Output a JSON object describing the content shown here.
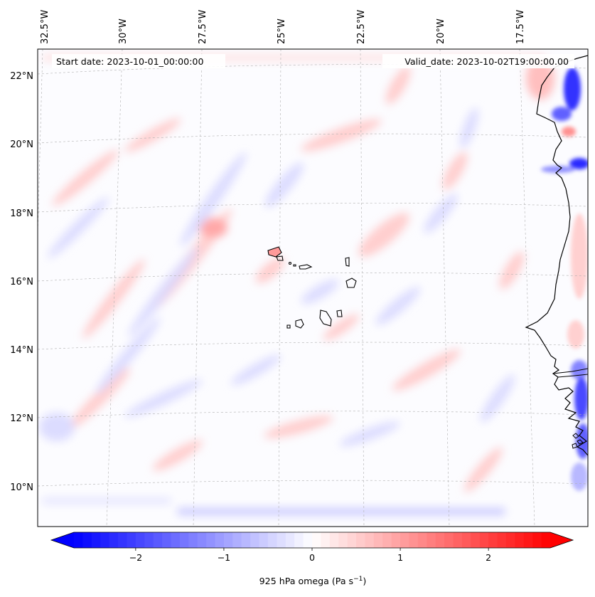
{
  "map": {
    "start_label": "Start date: 2023-10-01_00:00:00",
    "valid_label": "Valid_date: 2023-10-02T19:00:00.00",
    "lon_labels": [
      "32.5°W",
      "30°W",
      "27.5°W",
      "25°W",
      "22.5°W",
      "20°W",
      "17.5°W"
    ],
    "lat_labels": [
      "22°N",
      "20°N",
      "18°N",
      "16°N",
      "14°N",
      "12°N",
      "10°N"
    ],
    "field": "925 hPa omega",
    "colormap": "bwr",
    "coastline_color": "#000000"
  },
  "colorbar": {
    "label_main": "925 hPa omega (Pa s",
    "label_sup": "−1",
    "label_end": ")",
    "tick_values": [
      -2,
      -1,
      0,
      1,
      2
    ],
    "tick_labels": [
      "−2",
      "−1",
      "0",
      "1",
      "2"
    ],
    "range": [
      -2.7,
      2.7
    ],
    "negative_color": "#0000ff",
    "zero_color": "#ffffff",
    "positive_color": "#ff0000",
    "extend": "both"
  }
}
